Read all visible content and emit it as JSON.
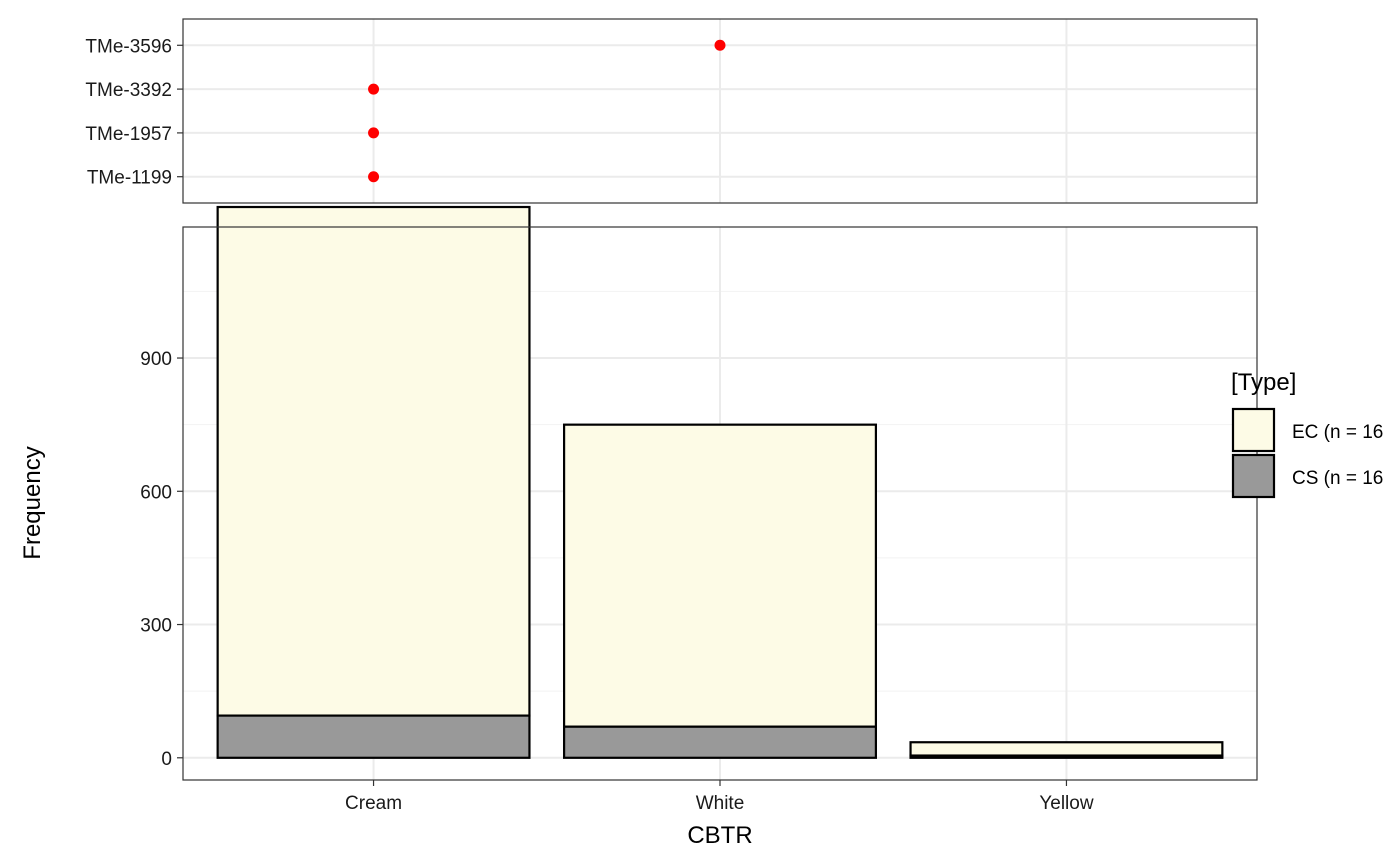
{
  "chart_data": [
    {
      "type": "scatter",
      "y_categories": [
        "TMe-1199",
        "TMe-1957",
        "TMe-3392",
        "TMe-3596"
      ],
      "x_categories": [
        "Cream",
        "White",
        "Yellow"
      ],
      "points": [
        {
          "label": "TMe-3596",
          "x": "White"
        },
        {
          "label": "TMe-3392",
          "x": "Cream"
        },
        {
          "label": "TMe-1957",
          "x": "Cream"
        },
        {
          "label": "TMe-1199",
          "x": "Cream"
        }
      ],
      "point_color": "#ff0000",
      "grid": true
    },
    {
      "type": "bar",
      "stacked": true,
      "categories": [
        "Cream",
        "White",
        "Yellow"
      ],
      "series": [
        {
          "name": "EC (n = 16",
          "values": [
            1145,
            680,
            30
          ],
          "color": "#fdfbe6"
        },
        {
          "name": "CS (n = 16",
          "values": [
            95,
            70,
            5
          ],
          "color": "#999999"
        }
      ],
      "xlabel": "CBTR",
      "ylabel": "Frequency",
      "ylim": [
        -50,
        1195
      ],
      "yticks": [
        "0",
        "300",
        "600",
        "900"
      ],
      "legend_title": "[Type]",
      "legend_position": "right",
      "grid": true
    }
  ]
}
